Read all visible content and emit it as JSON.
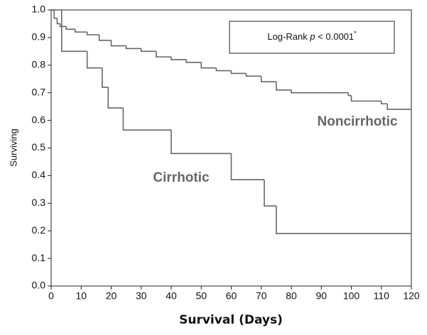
{
  "chart_data": {
    "type": "line",
    "step": "post",
    "x_label": "Survival (Days)",
    "y_label": "Surviving",
    "annotation": [
      "Log-Rank ",
      "p",
      " < 0.0001",
      "*"
    ],
    "xlim": [
      0,
      120
    ],
    "xticks": [
      0,
      10,
      20,
      30,
      40,
      50,
      60,
      70,
      80,
      90,
      100,
      110,
      120
    ],
    "ylim": [
      0,
      1
    ],
    "yticks": [
      {
        "value": 0,
        "label": "0.0"
      },
      0.1,
      0.2,
      0.3,
      0.4,
      0.5,
      0.6,
      0.7,
      0.8,
      0.9,
      {
        "value": 1,
        "label": "1.0"
      }
    ],
    "grid": false,
    "series": [
      {
        "name": "Noncirrhotic",
        "color": "#666666",
        "x": [
          0,
          1,
          2,
          3,
          5,
          8,
          12,
          16,
          20,
          25,
          30,
          35,
          40,
          45,
          50,
          55,
          60,
          65,
          70,
          75,
          80,
          90,
          99,
          100,
          105,
          110,
          112,
          120
        ],
        "values": [
          1,
          0.97,
          0.95,
          0.94,
          0.93,
          0.92,
          0.91,
          0.89,
          0.87,
          0.86,
          0.85,
          0.83,
          0.82,
          0.81,
          0.79,
          0.78,
          0.77,
          0.76,
          0.74,
          0.71,
          0.7,
          0.7,
          0.69,
          0.67,
          0.67,
          0.66,
          0.64,
          0.64
        ]
      },
      {
        "name": "Cirrhotic",
        "color": "#666666",
        "x": [
          0,
          3.5,
          12,
          17,
          19,
          24,
          40,
          60,
          71,
          75,
          120
        ],
        "values": [
          1,
          0.85,
          0.79,
          0.72,
          0.645,
          0.565,
          0.48,
          0.385,
          0.29,
          0.19,
          0.19
        ]
      }
    ]
  }
}
